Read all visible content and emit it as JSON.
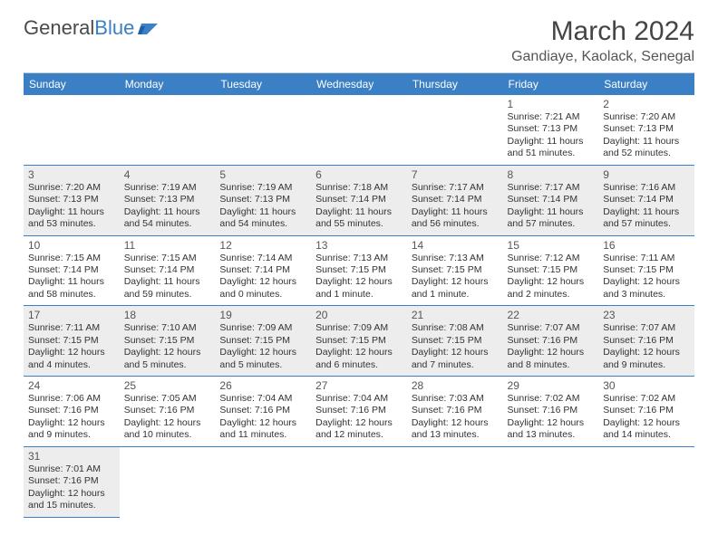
{
  "logo": {
    "textGeneral": "General",
    "textBlue": "Blue"
  },
  "title": "March 2024",
  "location": "Gandiaye, Kaolack, Senegal",
  "colors": {
    "headerBar": "#3b7fc4",
    "shadedCell": "#ededed",
    "text": "#333333",
    "divider": "#cccccc"
  },
  "dayNames": [
    "Sunday",
    "Monday",
    "Tuesday",
    "Wednesday",
    "Thursday",
    "Friday",
    "Saturday"
  ],
  "weeks": [
    [
      null,
      null,
      null,
      null,
      null,
      {
        "n": "1",
        "sunrise": "Sunrise: 7:21 AM",
        "sunset": "Sunset: 7:13 PM",
        "day1": "Daylight: 11 hours",
        "day2": "and 51 minutes."
      },
      {
        "n": "2",
        "sunrise": "Sunrise: 7:20 AM",
        "sunset": "Sunset: 7:13 PM",
        "day1": "Daylight: 11 hours",
        "day2": "and 52 minutes."
      }
    ],
    [
      {
        "n": "3",
        "sunrise": "Sunrise: 7:20 AM",
        "sunset": "Sunset: 7:13 PM",
        "day1": "Daylight: 11 hours",
        "day2": "and 53 minutes."
      },
      {
        "n": "4",
        "sunrise": "Sunrise: 7:19 AM",
        "sunset": "Sunset: 7:13 PM",
        "day1": "Daylight: 11 hours",
        "day2": "and 54 minutes."
      },
      {
        "n": "5",
        "sunrise": "Sunrise: 7:19 AM",
        "sunset": "Sunset: 7:13 PM",
        "day1": "Daylight: 11 hours",
        "day2": "and 54 minutes."
      },
      {
        "n": "6",
        "sunrise": "Sunrise: 7:18 AM",
        "sunset": "Sunset: 7:14 PM",
        "day1": "Daylight: 11 hours",
        "day2": "and 55 minutes."
      },
      {
        "n": "7",
        "sunrise": "Sunrise: 7:17 AM",
        "sunset": "Sunset: 7:14 PM",
        "day1": "Daylight: 11 hours",
        "day2": "and 56 minutes."
      },
      {
        "n": "8",
        "sunrise": "Sunrise: 7:17 AM",
        "sunset": "Sunset: 7:14 PM",
        "day1": "Daylight: 11 hours",
        "day2": "and 57 minutes."
      },
      {
        "n": "9",
        "sunrise": "Sunrise: 7:16 AM",
        "sunset": "Sunset: 7:14 PM",
        "day1": "Daylight: 11 hours",
        "day2": "and 57 minutes."
      }
    ],
    [
      {
        "n": "10",
        "sunrise": "Sunrise: 7:15 AM",
        "sunset": "Sunset: 7:14 PM",
        "day1": "Daylight: 11 hours",
        "day2": "and 58 minutes."
      },
      {
        "n": "11",
        "sunrise": "Sunrise: 7:15 AM",
        "sunset": "Sunset: 7:14 PM",
        "day1": "Daylight: 11 hours",
        "day2": "and 59 minutes."
      },
      {
        "n": "12",
        "sunrise": "Sunrise: 7:14 AM",
        "sunset": "Sunset: 7:14 PM",
        "day1": "Daylight: 12 hours",
        "day2": "and 0 minutes."
      },
      {
        "n": "13",
        "sunrise": "Sunrise: 7:13 AM",
        "sunset": "Sunset: 7:15 PM",
        "day1": "Daylight: 12 hours",
        "day2": "and 1 minute."
      },
      {
        "n": "14",
        "sunrise": "Sunrise: 7:13 AM",
        "sunset": "Sunset: 7:15 PM",
        "day1": "Daylight: 12 hours",
        "day2": "and 1 minute."
      },
      {
        "n": "15",
        "sunrise": "Sunrise: 7:12 AM",
        "sunset": "Sunset: 7:15 PM",
        "day1": "Daylight: 12 hours",
        "day2": "and 2 minutes."
      },
      {
        "n": "16",
        "sunrise": "Sunrise: 7:11 AM",
        "sunset": "Sunset: 7:15 PM",
        "day1": "Daylight: 12 hours",
        "day2": "and 3 minutes."
      }
    ],
    [
      {
        "n": "17",
        "sunrise": "Sunrise: 7:11 AM",
        "sunset": "Sunset: 7:15 PM",
        "day1": "Daylight: 12 hours",
        "day2": "and 4 minutes."
      },
      {
        "n": "18",
        "sunrise": "Sunrise: 7:10 AM",
        "sunset": "Sunset: 7:15 PM",
        "day1": "Daylight: 12 hours",
        "day2": "and 5 minutes."
      },
      {
        "n": "19",
        "sunrise": "Sunrise: 7:09 AM",
        "sunset": "Sunset: 7:15 PM",
        "day1": "Daylight: 12 hours",
        "day2": "and 5 minutes."
      },
      {
        "n": "20",
        "sunrise": "Sunrise: 7:09 AM",
        "sunset": "Sunset: 7:15 PM",
        "day1": "Daylight: 12 hours",
        "day2": "and 6 minutes."
      },
      {
        "n": "21",
        "sunrise": "Sunrise: 7:08 AM",
        "sunset": "Sunset: 7:15 PM",
        "day1": "Daylight: 12 hours",
        "day2": "and 7 minutes."
      },
      {
        "n": "22",
        "sunrise": "Sunrise: 7:07 AM",
        "sunset": "Sunset: 7:16 PM",
        "day1": "Daylight: 12 hours",
        "day2": "and 8 minutes."
      },
      {
        "n": "23",
        "sunrise": "Sunrise: 7:07 AM",
        "sunset": "Sunset: 7:16 PM",
        "day1": "Daylight: 12 hours",
        "day2": "and 9 minutes."
      }
    ],
    [
      {
        "n": "24",
        "sunrise": "Sunrise: 7:06 AM",
        "sunset": "Sunset: 7:16 PM",
        "day1": "Daylight: 12 hours",
        "day2": "and 9 minutes."
      },
      {
        "n": "25",
        "sunrise": "Sunrise: 7:05 AM",
        "sunset": "Sunset: 7:16 PM",
        "day1": "Daylight: 12 hours",
        "day2": "and 10 minutes."
      },
      {
        "n": "26",
        "sunrise": "Sunrise: 7:04 AM",
        "sunset": "Sunset: 7:16 PM",
        "day1": "Daylight: 12 hours",
        "day2": "and 11 minutes."
      },
      {
        "n": "27",
        "sunrise": "Sunrise: 7:04 AM",
        "sunset": "Sunset: 7:16 PM",
        "day1": "Daylight: 12 hours",
        "day2": "and 12 minutes."
      },
      {
        "n": "28",
        "sunrise": "Sunrise: 7:03 AM",
        "sunset": "Sunset: 7:16 PM",
        "day1": "Daylight: 12 hours",
        "day2": "and 13 minutes."
      },
      {
        "n": "29",
        "sunrise": "Sunrise: 7:02 AM",
        "sunset": "Sunset: 7:16 PM",
        "day1": "Daylight: 12 hours",
        "day2": "and 13 minutes."
      },
      {
        "n": "30",
        "sunrise": "Sunrise: 7:02 AM",
        "sunset": "Sunset: 7:16 PM",
        "day1": "Daylight: 12 hours",
        "day2": "and 14 minutes."
      }
    ],
    [
      {
        "n": "31",
        "sunrise": "Sunrise: 7:01 AM",
        "sunset": "Sunset: 7:16 PM",
        "day1": "Daylight: 12 hours",
        "day2": "and 15 minutes."
      },
      null,
      null,
      null,
      null,
      null,
      null
    ]
  ]
}
